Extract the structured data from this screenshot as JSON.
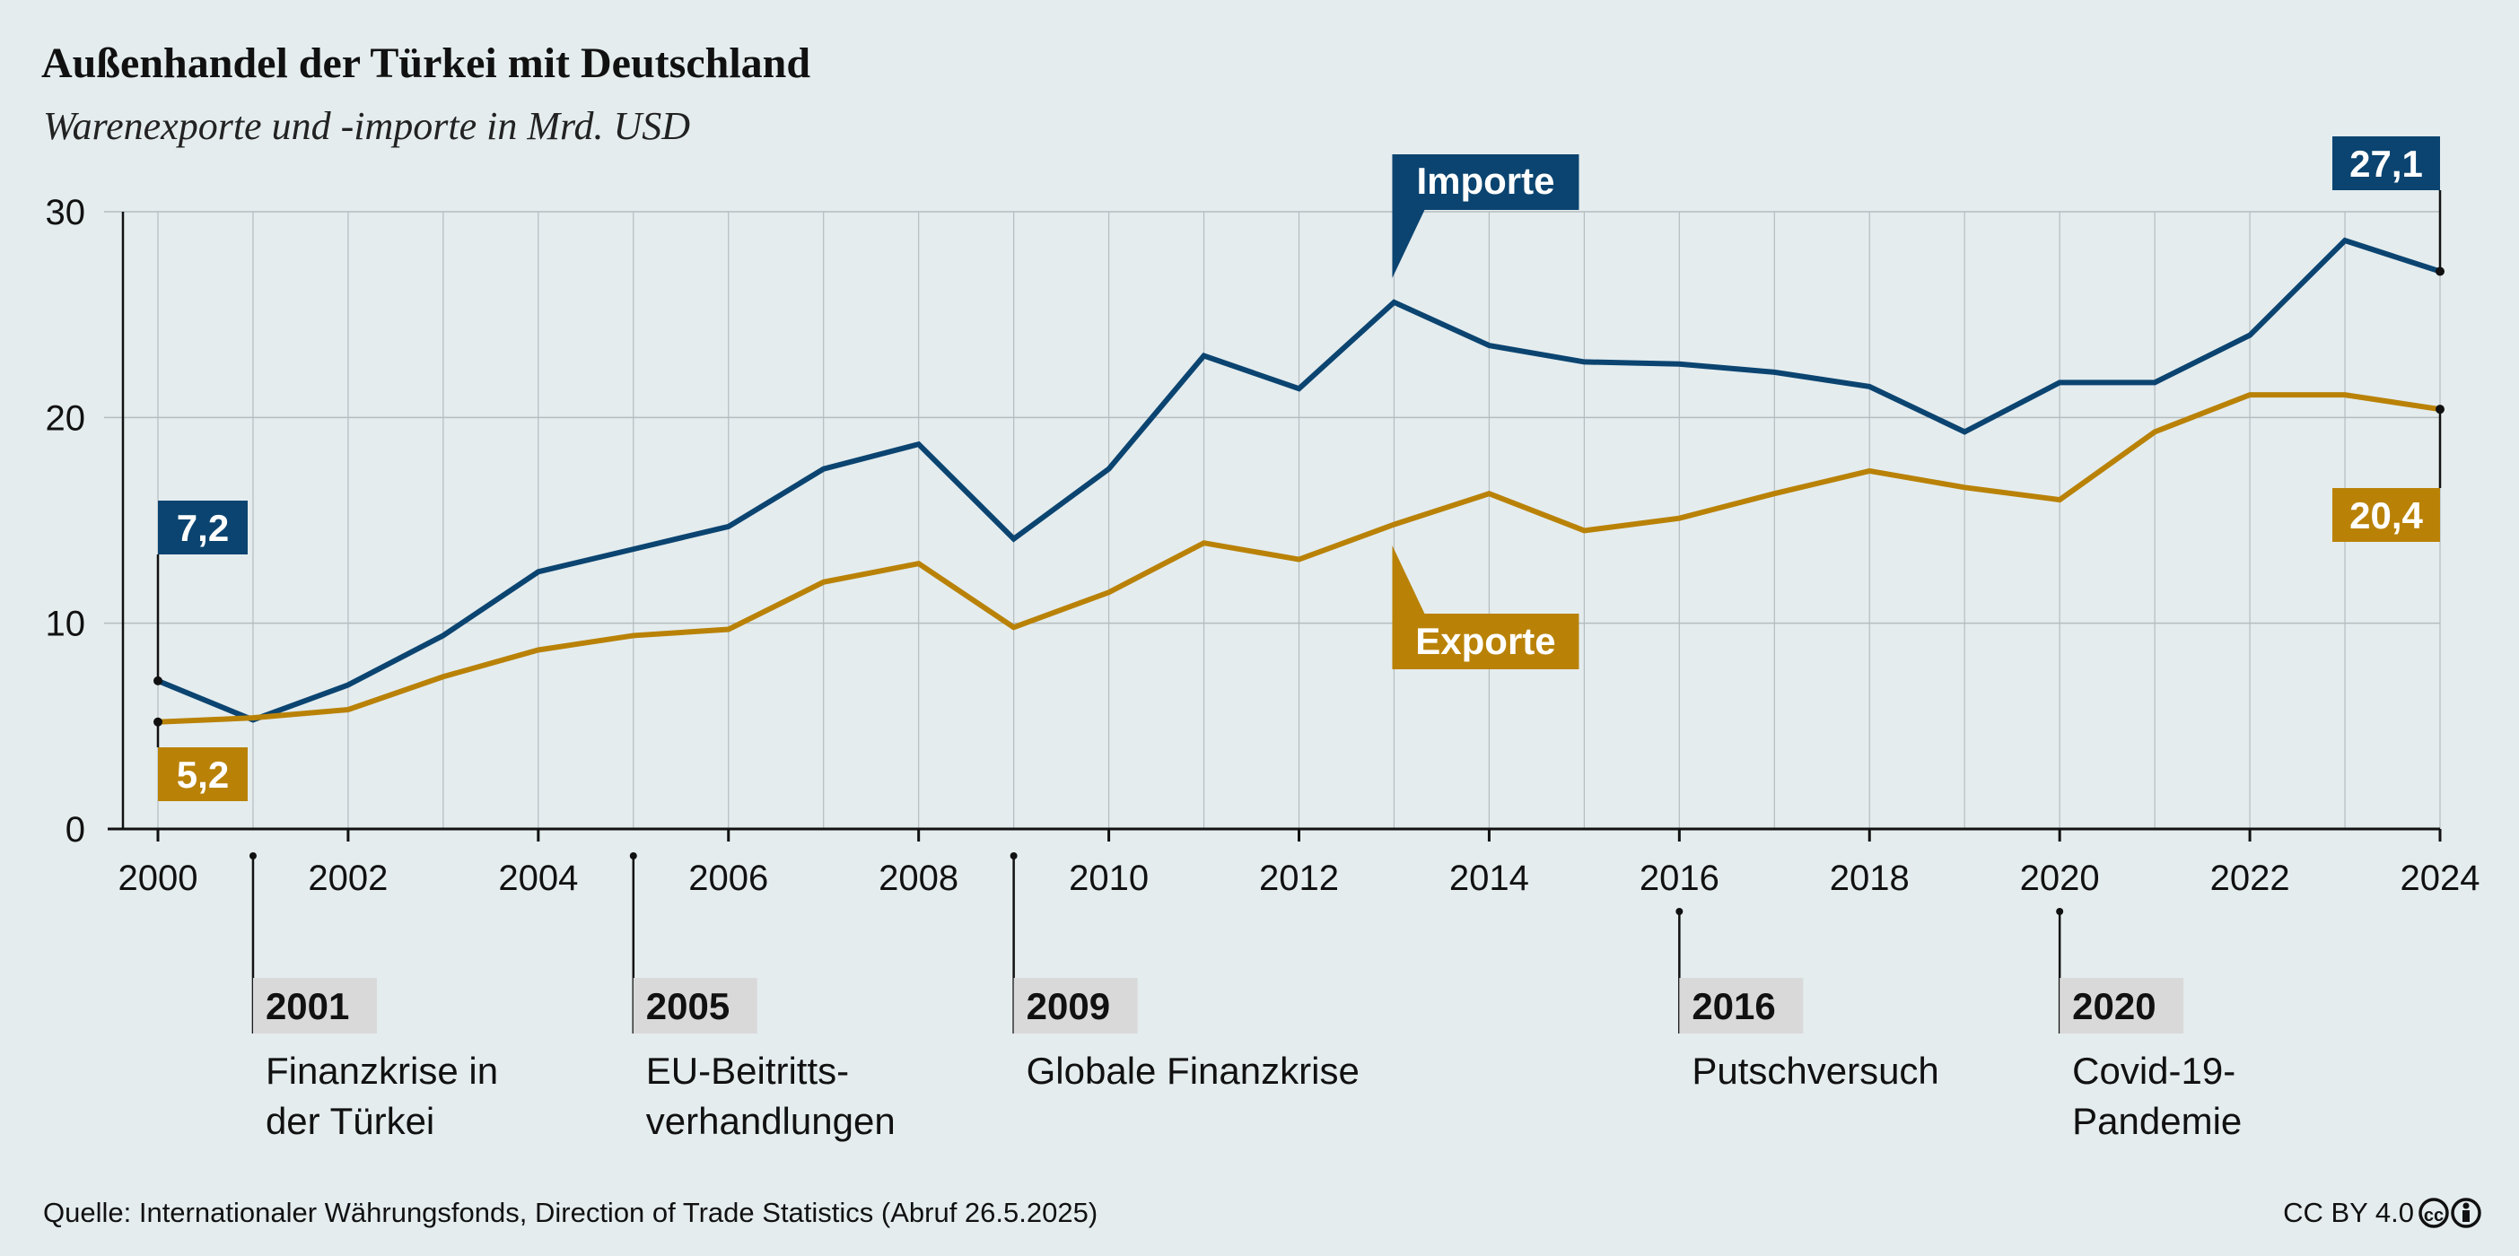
{
  "header": {
    "title": "Außenhandel der Türkei mit Deutschland",
    "subtitle": "Warenexporte und -importe in Mrd. USD"
  },
  "footer": {
    "source": "Quelle: Internationaler Währungsfonds, Direction of Trade Statistics (Abruf 26.5.2025)",
    "license": "CC BY 4.0"
  },
  "colors": {
    "background": "#e4ecee",
    "imports": "#0b4470",
    "exports": "#b98207",
    "event_box": "#d9d9d9",
    "grid": "#b5bcbf"
  },
  "chart_data": {
    "type": "line",
    "title": "Außenhandel der Türkei mit Deutschland",
    "subtitle": "Warenexporte und -importe in Mrd. USD",
    "x": [
      2000,
      2001,
      2002,
      2003,
      2004,
      2005,
      2006,
      2007,
      2008,
      2009,
      2010,
      2011,
      2012,
      2013,
      2014,
      2015,
      2016,
      2017,
      2018,
      2019,
      2020,
      2021,
      2022,
      2023,
      2024
    ],
    "xticks": [
      "2000",
      "2002",
      "2004",
      "2006",
      "2008",
      "2010",
      "2012",
      "2014",
      "2016",
      "2018",
      "2020",
      "2022",
      "2024"
    ],
    "xlim": [
      2000,
      2024
    ],
    "yticks": [
      "0",
      "10",
      "20",
      "30"
    ],
    "ylim": [
      0,
      30
    ],
    "grid": true,
    "series": [
      {
        "name": "Importe",
        "color": "#0b4470",
        "values": [
          7.2,
          5.3,
          7.0,
          9.4,
          12.5,
          13.6,
          14.7,
          17.5,
          18.7,
          14.1,
          17.5,
          23.0,
          21.4,
          25.6,
          23.5,
          22.7,
          22.6,
          22.2,
          21.5,
          19.3,
          21.7,
          21.7,
          24.0,
          28.6,
          27.1
        ],
        "start_label": "7,2",
        "end_label": "27,1"
      },
      {
        "name": "Exporte",
        "color": "#b98207",
        "values": [
          5.2,
          5.4,
          5.8,
          7.4,
          8.7,
          9.4,
          9.7,
          12.0,
          12.9,
          9.8,
          11.5,
          13.9,
          13.1,
          14.8,
          16.3,
          14.5,
          15.1,
          16.3,
          17.4,
          16.6,
          16.0,
          19.3,
          21.1,
          21.1,
          20.4
        ],
        "start_label": "5,2",
        "end_label": "20,4"
      }
    ],
    "annotations": [
      {
        "year": 2001,
        "label": "2001",
        "lines": [
          "Finanzkrise in",
          "der Türkei"
        ]
      },
      {
        "year": 2005,
        "label": "2005",
        "lines": [
          "EU-Beitritts-",
          "verhandlungen"
        ]
      },
      {
        "year": 2009,
        "label": "2009",
        "lines": [
          "Globale Finanzkrise"
        ]
      },
      {
        "year": 2016,
        "label": "2016",
        "lines": [
          "Putschversuch"
        ]
      },
      {
        "year": 2020,
        "label": "2020",
        "lines": [
          "Covid-19-",
          "Pandemie"
        ]
      }
    ]
  }
}
